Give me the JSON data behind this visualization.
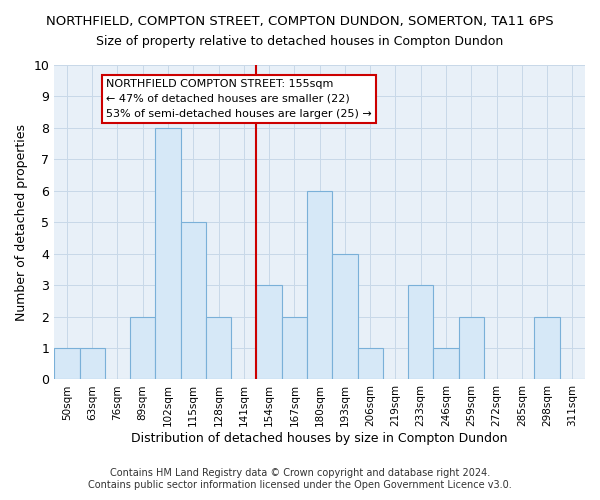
{
  "title": "NORTHFIELD, COMPTON STREET, COMPTON DUNDON, SOMERTON, TA11 6PS",
  "subtitle": "Size of property relative to detached houses in Compton Dundon",
  "xlabel": "Distribution of detached houses by size in Compton Dundon",
  "ylabel": "Number of detached properties",
  "categories": [
    "50sqm",
    "63sqm",
    "76sqm",
    "89sqm",
    "102sqm",
    "115sqm",
    "128sqm",
    "141sqm",
    "154sqm",
    "167sqm",
    "180sqm",
    "193sqm",
    "206sqm",
    "219sqm",
    "233sqm",
    "246sqm",
    "259sqm",
    "272sqm",
    "285sqm",
    "298sqm",
    "311sqm"
  ],
  "values": [
    1,
    1,
    0,
    2,
    8,
    5,
    2,
    0,
    3,
    2,
    6,
    4,
    1,
    0,
    3,
    1,
    2,
    0,
    0,
    2,
    0
  ],
  "bar_color": "#d6e8f7",
  "bar_edge_color": "#7ab0d8",
  "reference_line_x": 8,
  "annotation_line1": "NORTHFIELD COMPTON STREET: 155sqm",
  "annotation_line2": "← 47% of detached houses are smaller (22)",
  "annotation_line3": "53% of semi-detached houses are larger (25) →",
  "annotation_box_color": "#ffffff",
  "annotation_box_edge_color": "#cc0000",
  "vline_color": "#cc0000",
  "ylim": [
    0,
    10
  ],
  "yticks": [
    0,
    1,
    2,
    3,
    4,
    5,
    6,
    7,
    8,
    9,
    10
  ],
  "grid_color": "#c8d8e8",
  "plot_bg_color": "#e8f0f8",
  "footer_line1": "Contains HM Land Registry data © Crown copyright and database right 2024.",
  "footer_line2": "Contains public sector information licensed under the Open Government Licence v3.0.",
  "title_fontsize": 9.5,
  "subtitle_fontsize": 9,
  "bg_color": "#ffffff"
}
